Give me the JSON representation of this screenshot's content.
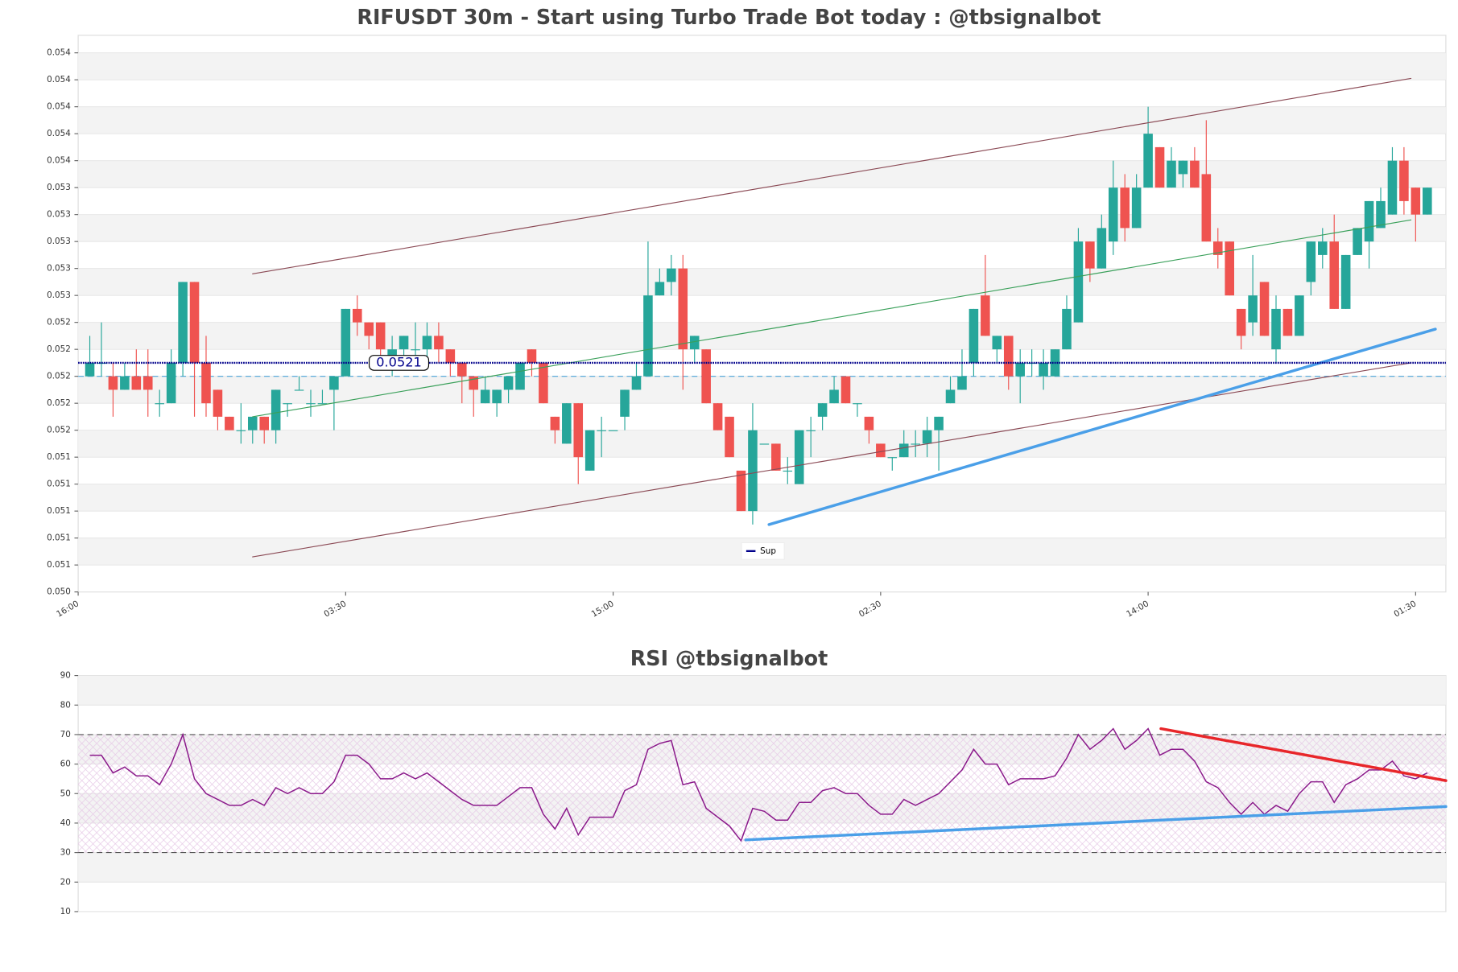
{
  "chart_data": [
    {
      "type": "candlestick",
      "title": "RIFUSDT 30m - Start using Turbo Trade Bot today : @tbsignalbot",
      "x": [
        1,
        2,
        3,
        4,
        5,
        6,
        7,
        8,
        9,
        10,
        11,
        12,
        13,
        14,
        15,
        16,
        17,
        18,
        19,
        20,
        21,
        22,
        23,
        24,
        25,
        26,
        27,
        28,
        29,
        30,
        31,
        32,
        33,
        34,
        35,
        36,
        37,
        38,
        39,
        40,
        41,
        42,
        43,
        44,
        45,
        46,
        47,
        48,
        49,
        50,
        51,
        52,
        53,
        54,
        55,
        56,
        57,
        58,
        59,
        60,
        61,
        62,
        63,
        64,
        65,
        66,
        67,
        68,
        69,
        70,
        71,
        72,
        73,
        74,
        75,
        76,
        77,
        78,
        79,
        80,
        81,
        82,
        83,
        84,
        85,
        86,
        87,
        88,
        89,
        90,
        91,
        92,
        93,
        94,
        95,
        96,
        97,
        98,
        99,
        100,
        101,
        102,
        103,
        104,
        105,
        106,
        107,
        108,
        109,
        110,
        111,
        112,
        113,
        114,
        115,
        116
      ],
      "open": [
        0.052,
        0.0521,
        0.052,
        0.0519,
        0.052,
        0.052,
        0.0518,
        0.0518,
        0.0521,
        0.0527,
        0.0521,
        0.0519,
        0.0517,
        0.0516,
        0.0516,
        0.0517,
        0.0516,
        0.0518,
        0.0519,
        0.0518,
        0.0518,
        0.0519,
        0.052,
        0.0525,
        0.0524,
        0.0524,
        0.0521,
        0.0522,
        0.0522,
        0.0522,
        0.0523,
        0.0522,
        0.0521,
        0.052,
        0.0518,
        0.0518,
        0.0519,
        0.0519,
        0.0522,
        0.0521,
        0.0517,
        0.0515,
        0.0518,
        0.0513,
        0.0516,
        0.0516,
        0.0517,
        0.0519,
        0.052,
        0.0526,
        0.0527,
        0.0528,
        0.0522,
        0.0522,
        0.0518,
        0.0517,
        0.0513,
        0.051,
        0.0515,
        0.0515,
        0.0513,
        0.0512,
        0.0516,
        0.0517,
        0.0518,
        0.052,
        0.0518,
        0.0517,
        0.0515,
        0.0514,
        0.0514,
        0.0515,
        0.0515,
        0.0516,
        0.0518,
        0.0519,
        0.0521,
        0.0526,
        0.0522,
        0.0523,
        0.052,
        0.0521,
        0.052,
        0.052,
        0.0522,
        0.0524,
        0.053,
        0.0528,
        0.053,
        0.0534,
        0.0531,
        0.0534,
        0.0537,
        0.0534,
        0.0535,
        0.0536,
        0.0535,
        0.053,
        0.053,
        0.0525,
        0.0524,
        0.0527,
        0.0522,
        0.0525,
        0.0523,
        0.0527,
        0.0529,
        0.053,
        0.0525,
        0.0529,
        0.053,
        0.0531,
        0.0532,
        0.0536,
        0.0534,
        0.0532
      ],
      "high": [
        0.0523,
        0.0524,
        0.0521,
        0.0521,
        0.0522,
        0.0522,
        0.0519,
        0.0522,
        0.0527,
        0.0527,
        0.0523,
        0.0519,
        0.0517,
        0.0518,
        0.0517,
        0.0517,
        0.0519,
        0.0518,
        0.052,
        0.0519,
        0.0519,
        0.052,
        0.0525,
        0.0526,
        0.0524,
        0.0524,
        0.0523,
        0.0523,
        0.0524,
        0.0524,
        0.0524,
        0.0522,
        0.0521,
        0.052,
        0.052,
        0.0519,
        0.052,
        0.0521,
        0.0522,
        0.0521,
        0.0517,
        0.0518,
        0.0518,
        0.0516,
        0.0517,
        0.0516,
        0.0519,
        0.0521,
        0.053,
        0.0528,
        0.0529,
        0.0529,
        0.0523,
        0.0522,
        0.0518,
        0.0517,
        0.0513,
        0.0518,
        0.0515,
        0.0515,
        0.0514,
        0.0516,
        0.0517,
        0.0518,
        0.052,
        0.052,
        0.0518,
        0.0517,
        0.0515,
        0.0514,
        0.0516,
        0.0516,
        0.0517,
        0.0517,
        0.052,
        0.0522,
        0.0525,
        0.0529,
        0.0523,
        0.0523,
        0.0522,
        0.0522,
        0.0522,
        0.0522,
        0.0526,
        0.0531,
        0.053,
        0.0532,
        0.0536,
        0.0535,
        0.0535,
        0.054,
        0.0537,
        0.0537,
        0.0536,
        0.0537,
        0.0539,
        0.0531,
        0.053,
        0.0525,
        0.0529,
        0.0527,
        0.0526,
        0.0525,
        0.0526,
        0.053,
        0.0531,
        0.0532,
        0.0529,
        0.0531,
        0.0533,
        0.0534,
        0.0537,
        0.0537,
        0.0534,
        0.0534
      ],
      "low": [
        0.052,
        0.052,
        0.0517,
        0.0519,
        0.0519,
        0.0517,
        0.0517,
        0.0518,
        0.052,
        0.0517,
        0.0517,
        0.0516,
        0.0516,
        0.0515,
        0.0515,
        0.0515,
        0.0515,
        0.0517,
        0.0519,
        0.0517,
        0.0518,
        0.0516,
        0.052,
        0.0523,
        0.0522,
        0.0521,
        0.052,
        0.0521,
        0.0521,
        0.0521,
        0.0521,
        0.052,
        0.0518,
        0.0517,
        0.0518,
        0.0517,
        0.0518,
        0.0519,
        0.052,
        0.0518,
        0.0515,
        0.0515,
        0.0512,
        0.0513,
        0.0514,
        0.0516,
        0.0516,
        0.0519,
        0.052,
        0.0526,
        0.0526,
        0.0519,
        0.0521,
        0.0518,
        0.0516,
        0.0514,
        0.051,
        0.0509,
        0.0515,
        0.0513,
        0.0512,
        0.0512,
        0.0514,
        0.0516,
        0.0518,
        0.0518,
        0.0517,
        0.0515,
        0.0514,
        0.0513,
        0.0514,
        0.0514,
        0.0514,
        0.0513,
        0.0518,
        0.0519,
        0.052,
        0.0523,
        0.0521,
        0.0519,
        0.0518,
        0.052,
        0.0519,
        0.052,
        0.0522,
        0.0524,
        0.0527,
        0.0528,
        0.0529,
        0.053,
        0.0531,
        0.0534,
        0.0534,
        0.0534,
        0.0534,
        0.0534,
        0.053,
        0.0528,
        0.0526,
        0.0522,
        0.0523,
        0.0523,
        0.0521,
        0.0523,
        0.0523,
        0.0526,
        0.0528,
        0.0525,
        0.0525,
        0.0529,
        0.0528,
        0.0531,
        0.0532,
        0.0532,
        0.053,
        0.0532
      ],
      "close": [
        0.0521,
        0.0521,
        0.0519,
        0.052,
        0.0519,
        0.0519,
        0.0518,
        0.0521,
        0.0527,
        0.0521,
        0.0518,
        0.0517,
        0.0516,
        0.0516,
        0.0517,
        0.0516,
        0.0519,
        0.0518,
        0.0519,
        0.0518,
        0.0518,
        0.052,
        0.0525,
        0.0524,
        0.0523,
        0.0522,
        0.0522,
        0.0523,
        0.0522,
        0.0523,
        0.0522,
        0.0521,
        0.052,
        0.0519,
        0.0519,
        0.0519,
        0.052,
        0.0521,
        0.0521,
        0.0518,
        0.0516,
        0.0518,
        0.0514,
        0.0516,
        0.0516,
        0.0516,
        0.0519,
        0.052,
        0.0526,
        0.0527,
        0.0528,
        0.0522,
        0.0523,
        0.0518,
        0.0516,
        0.0514,
        0.051,
        0.0516,
        0.0515,
        0.0513,
        0.0513,
        0.0516,
        0.0516,
        0.0518,
        0.0519,
        0.0518,
        0.0518,
        0.0516,
        0.0514,
        0.0514,
        0.0515,
        0.0515,
        0.0516,
        0.0517,
        0.0519,
        0.052,
        0.0525,
        0.0523,
        0.0523,
        0.052,
        0.0521,
        0.0521,
        0.0521,
        0.0522,
        0.0525,
        0.053,
        0.0528,
        0.0531,
        0.0534,
        0.0531,
        0.0534,
        0.0538,
        0.0534,
        0.0536,
        0.0536,
        0.0534,
        0.053,
        0.0529,
        0.0526,
        0.0523,
        0.0526,
        0.0523,
        0.0525,
        0.0523,
        0.0526,
        0.053,
        0.053,
        0.0525,
        0.0529,
        0.0531,
        0.0533,
        0.0533,
        0.0536,
        0.0533,
        0.0532,
        0.0534
      ],
      "up_color": "#26a69a",
      "down_color": "#ef5350",
      "xlim": [
        0,
        117.6
      ],
      "xticks": [
        {
          "value": 0,
          "label": "16:00"
        },
        {
          "value": 23,
          "label": "03:30"
        },
        {
          "value": 46,
          "label": "15:00"
        },
        {
          "value": 69,
          "label": "02:30"
        },
        {
          "value": 92,
          "label": "14:00"
        },
        {
          "value": 115,
          "label": "01:30"
        }
      ],
      "ylim": [
        0.0504,
        0.05453
      ],
      "yticks": [
        {
          "value": 0.0504,
          "label": "0.050"
        },
        {
          "value": 0.0506,
          "label": "0.051"
        },
        {
          "value": 0.0508,
          "label": "0.051"
        },
        {
          "value": 0.051,
          "label": "0.051"
        },
        {
          "value": 0.0512,
          "label": "0.051"
        },
        {
          "value": 0.0514,
          "label": "0.051"
        },
        {
          "value": 0.0516,
          "label": "0.052"
        },
        {
          "value": 0.0518,
          "label": "0.052"
        },
        {
          "value": 0.052,
          "label": "0.052"
        },
        {
          "value": 0.0522,
          "label": "0.052"
        },
        {
          "value": 0.0524,
          "label": "0.052"
        },
        {
          "value": 0.0526,
          "label": "0.053"
        },
        {
          "value": 0.0528,
          "label": "0.053"
        },
        {
          "value": 0.053,
          "label": "0.053"
        },
        {
          "value": 0.0532,
          "label": "0.053"
        },
        {
          "value": 0.0534,
          "label": "0.053"
        },
        {
          "value": 0.0536,
          "label": "0.054"
        },
        {
          "value": 0.0538,
          "label": "0.054"
        },
        {
          "value": 0.054,
          "label": "0.054"
        },
        {
          "value": 0.0542,
          "label": "0.054"
        },
        {
          "value": 0.0544,
          "label": "0.054"
        }
      ],
      "grid": true,
      "hlines": [
        {
          "name": "Sup",
          "value": 0.0521,
          "color": "#00008b"
        }
      ],
      "dashed_level": {
        "value": 0.052,
        "color": "#4aa3d8"
      },
      "legend": "lower center",
      "lines": [
        {
          "x": [
            15,
            114.6
          ],
          "y": [
            0.05276,
            0.05421
          ],
          "color": "#8b4a55",
          "width": 1
        },
        {
          "x": [
            15,
            114.6
          ],
          "y": [
            0.05066,
            0.0521
          ],
          "color": "#8b4a55",
          "width": 1
        },
        {
          "x": [
            15,
            114.6
          ],
          "y": [
            0.0517,
            0.05316
          ],
          "color": "#3aa05a",
          "width": 1
        },
        {
          "x": [
            59.4,
            116.7
          ],
          "y": [
            0.0509,
            0.05235
          ],
          "color": "#4a9fe8",
          "width": 3
        }
      ]
    },
    {
      "type": "line",
      "title": "RSI @tbsignalbot",
      "x": [
        1,
        2,
        3,
        4,
        5,
        6,
        7,
        8,
        9,
        10,
        11,
        12,
        13,
        14,
        15,
        16,
        17,
        18,
        19,
        20,
        21,
        22,
        23,
        24,
        25,
        26,
        27,
        28,
        29,
        30,
        31,
        32,
        33,
        34,
        35,
        36,
        37,
        38,
        39,
        40,
        41,
        42,
        43,
        44,
        45,
        46,
        47,
        48,
        49,
        50,
        51,
        52,
        53,
        54,
        55,
        56,
        57,
        58,
        59,
        60,
        61,
        62,
        63,
        64,
        65,
        66,
        67,
        68,
        69,
        70,
        71,
        72,
        73,
        74,
        75,
        76,
        77,
        78,
        79,
        80,
        81,
        82,
        83,
        84,
        85,
        86,
        87,
        88,
        89,
        90,
        91,
        92,
        93,
        94,
        95,
        96,
        97,
        98,
        99,
        100,
        101,
        102,
        103,
        104,
        105,
        106,
        107,
        108,
        109,
        110,
        111,
        112,
        113,
        114,
        115,
        116
      ],
      "series": [
        {
          "color": "#8b1a8b",
          "values": [
            63,
            63,
            57,
            59,
            56,
            56,
            53,
            60,
            70,
            55,
            50,
            48,
            46,
            46,
            48,
            46,
            52,
            50,
            52,
            50,
            50,
            54,
            63,
            63,
            60,
            55,
            55,
            57,
            55,
            57,
            54,
            51,
            48,
            46,
            46,
            46,
            49,
            52,
            52,
            43,
            38,
            45,
            36,
            42,
            42,
            42,
            51,
            53,
            65,
            67,
            68,
            53,
            54,
            45,
            42,
            39,
            34,
            45,
            44,
            41,
            41,
            47,
            47,
            51,
            52,
            50,
            50,
            46,
            43,
            43,
            48,
            46,
            48,
            50,
            54,
            58,
            65,
            60,
            60,
            53,
            55,
            55,
            55,
            56,
            62,
            70,
            65,
            68,
            72,
            65,
            68,
            72,
            63,
            65,
            65,
            61,
            54,
            52,
            47,
            43,
            47,
            43,
            46,
            44,
            50,
            54,
            54,
            47,
            53,
            55,
            58,
            58,
            61,
            56,
            55,
            57
          ]
        }
      ],
      "xlim": [
        0,
        117.6
      ],
      "ylim": [
        10,
        90
      ],
      "yticks": [
        10,
        20,
        30,
        40,
        50,
        60,
        70,
        80,
        90
      ],
      "grid": true,
      "levels": [
        70,
        30
      ],
      "lines": [
        {
          "x": [
            57.4,
            117.6
          ],
          "y": [
            34.3,
            45.6
          ],
          "color": "#4a9fe8",
          "width": 3
        },
        {
          "x": [
            93.1,
            117.6
          ],
          "y": [
            72.0,
            54.4
          ],
          "color": "#e8262a",
          "width": 3
        }
      ]
    }
  ]
}
